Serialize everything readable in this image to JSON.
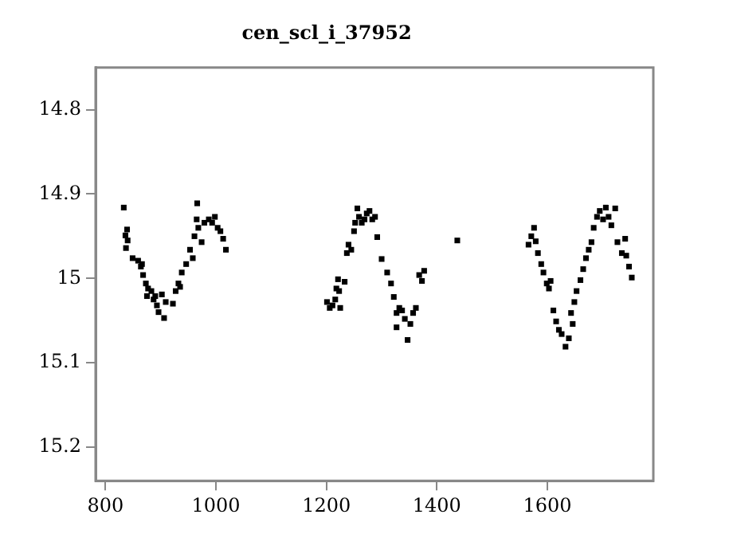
{
  "chart_data": {
    "type": "scatter",
    "title": "cen_scl_i_37952",
    "marker": "square",
    "grid": false,
    "legend": false,
    "xlim": [
      782,
      1792
    ],
    "xticks": [
      800,
      1000,
      1200,
      1400,
      1600
    ],
    "ylim": [
      15.24,
      14.75
    ],
    "yticks": [
      14.8,
      14.9,
      15,
      15.1,
      15.2
    ],
    "series": [
      {
        "color": "#000000",
        "x": [
          833,
          836,
          839,
          840,
          837,
          849,
          859,
          864,
          866,
          868,
          873,
          877,
          875,
          883,
          887,
          890,
          893,
          896,
          902,
          906,
          909,
          922,
          927,
          932,
          935,
          938,
          946,
          953,
          958,
          961,
          965,
          966,
          968,
          974,
          979,
          987,
          993,
          998,
          1003,
          1008,
          1013,
          1018,
          1201,
          1206,
          1211,
          1216,
          1218,
          1221,
          1223,
          1225,
          1233,
          1237,
          1240,
          1245,
          1250,
          1252,
          1256,
          1259,
          1264,
          1269,
          1273,
          1278,
          1283,
          1288,
          1292,
          1300,
          1310,
          1317,
          1322,
          1327,
          1332,
          1327,
          1337,
          1342,
          1347,
          1352,
          1357,
          1362,
          1368,
          1373,
          1377,
          1437,
          1566,
          1571,
          1576,
          1579,
          1583,
          1589,
          1593,
          1599,
          1603,
          1606,
          1611,
          1616,
          1621,
          1626,
          1633,
          1639,
          1643,
          1646,
          1649,
          1653,
          1660,
          1665,
          1670,
          1675,
          1680,
          1684,
          1690,
          1695,
          1701,
          1706,
          1711,
          1716,
          1723,
          1727,
          1735,
          1741,
          1743,
          1748,
          1753
        ],
        "values": [
          14.916,
          14.949,
          14.942,
          14.955,
          14.964,
          14.976,
          14.979,
          14.986,
          14.983,
          14.996,
          15.006,
          15.012,
          15.021,
          15.015,
          15.025,
          15.021,
          15.032,
          15.04,
          15.019,
          15.047,
          15.028,
          15.03,
          15.015,
          15.006,
          15.01,
          14.993,
          14.983,
          14.966,
          14.976,
          14.95,
          14.93,
          14.911,
          14.94,
          14.957,
          14.934,
          14.93,
          14.934,
          14.927,
          14.94,
          14.944,
          14.953,
          14.966,
          15.028,
          15.035,
          15.032,
          15.025,
          15.012,
          15.001,
          15.015,
          15.035,
          15.004,
          14.97,
          14.96,
          14.966,
          14.944,
          14.934,
          14.917,
          14.927,
          14.934,
          14.93,
          14.923,
          14.92,
          14.93,
          14.927,
          14.951,
          14.977,
          14.993,
          15.006,
          15.022,
          15.041,
          15.035,
          15.058,
          15.038,
          15.048,
          15.073,
          15.054,
          15.041,
          15.035,
          14.996,
          15.003,
          14.991,
          14.955,
          14.96,
          14.95,
          14.94,
          14.956,
          14.97,
          14.983,
          14.993,
          15.006,
          15.012,
          15.003,
          15.038,
          15.051,
          15.061,
          15.066,
          15.081,
          15.071,
          15.041,
          15.054,
          15.028,
          15.015,
          15.002,
          14.989,
          14.976,
          14.966,
          14.957,
          14.94,
          14.927,
          14.92,
          14.93,
          14.916,
          14.927,
          14.937,
          14.917,
          14.957,
          14.97,
          14.953,
          14.973,
          14.986,
          14.999
        ]
      }
    ]
  }
}
